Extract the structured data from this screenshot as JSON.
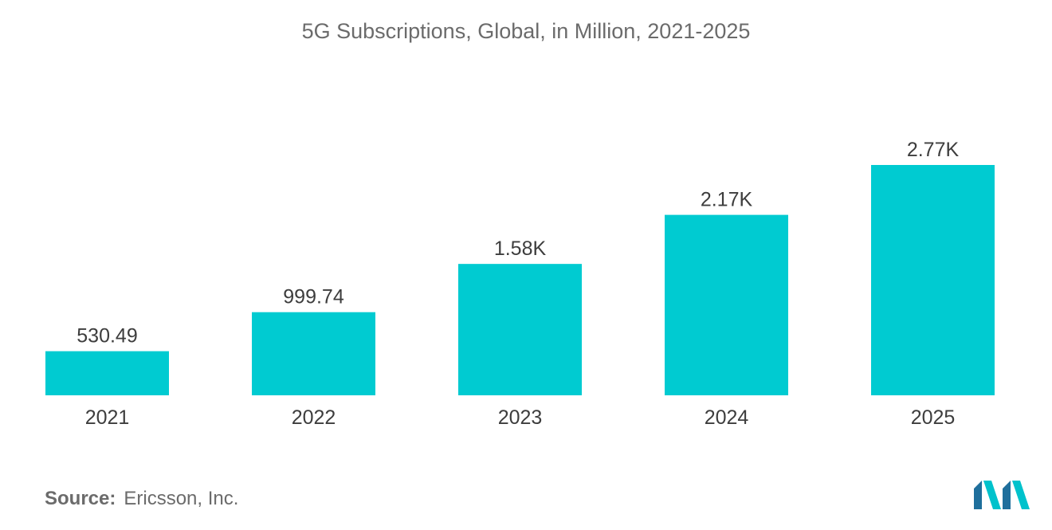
{
  "title": "5G Subscriptions, Global, in Million, 2021-2025",
  "source": {
    "label": "Source:",
    "value": "Ericsson, Inc."
  },
  "colors": {
    "bar": "#00cbd1",
    "text": "#3d3d3d",
    "muted": "#6b6b6b",
    "logo_dark": "#1f6f9c",
    "logo_light": "#00c2cc"
  },
  "chart_data": {
    "type": "bar",
    "title": "5G Subscriptions, Global, in Million, 2021-2025",
    "categories": [
      "2021",
      "2022",
      "2023",
      "2024",
      "2025"
    ],
    "values": [
      530.49,
      999.74,
      1580,
      2170,
      2770
    ],
    "data_labels": [
      "530.49",
      "999.74",
      "1.58K",
      "2.17K",
      "2.77K"
    ],
    "xlabel": "",
    "ylabel": "",
    "ylim": [
      0,
      3000
    ],
    "grid": false,
    "legend": "none"
  }
}
